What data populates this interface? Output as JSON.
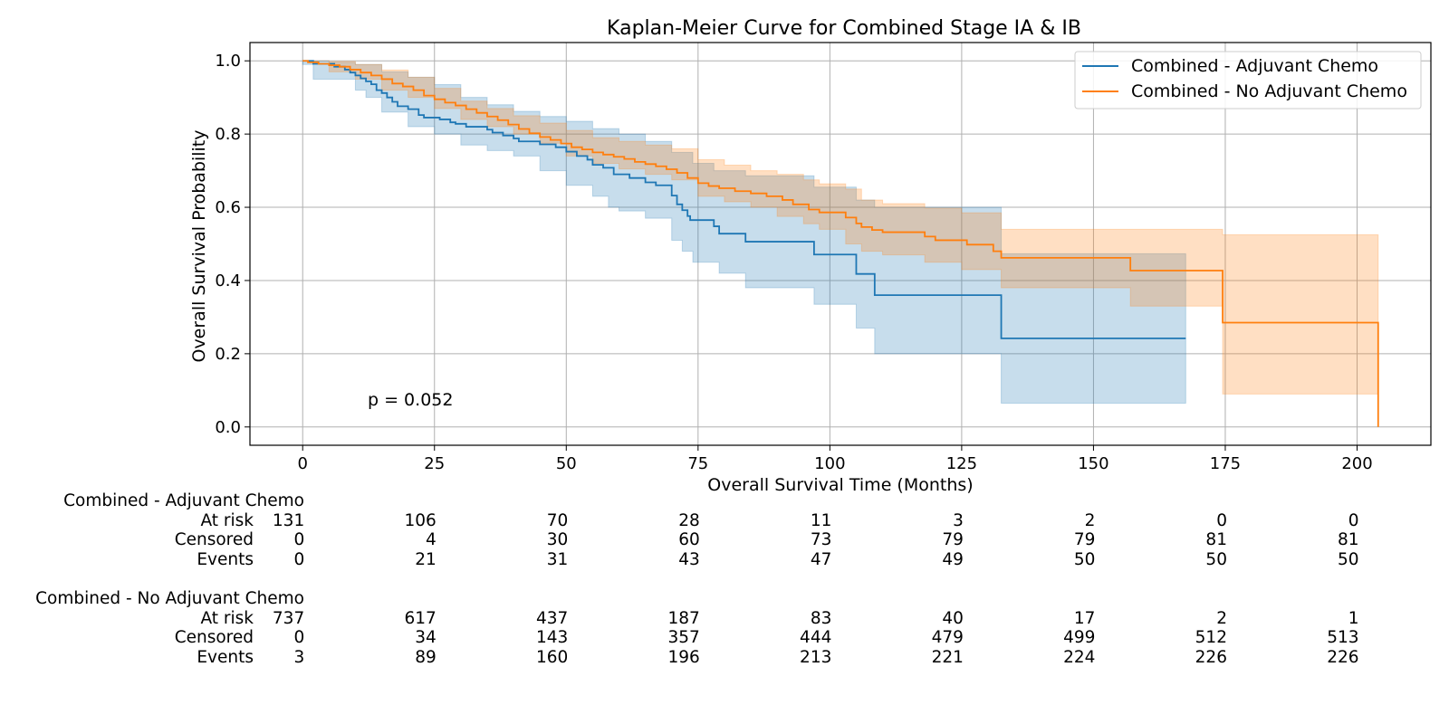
{
  "chart_data": {
    "type": "line",
    "title": "Kaplan-Meier Curve for Combined Stage IA & IB",
    "xlabel": "Overall Survival Time (Months)",
    "ylabel": "Overall Survival Probability",
    "xlim": [
      -10,
      214
    ],
    "ylim": [
      -0.05,
      1.05
    ],
    "x_ticks": [
      0,
      25,
      50,
      75,
      100,
      125,
      150,
      175,
      200
    ],
    "y_ticks": [
      0.0,
      0.2,
      0.4,
      0.6,
      0.8,
      1.0
    ],
    "x_tick_labels": [
      "0",
      "25",
      "50",
      "75",
      "100",
      "125",
      "150",
      "175",
      "200"
    ],
    "y_tick_labels": [
      "0.0",
      "0.2",
      "0.4",
      "0.6",
      "0.8",
      "1.0"
    ],
    "grid": true,
    "legend_position": "top-right",
    "annotation": "p = 0.052",
    "series": [
      {
        "name": "Combined - Adjuvant Chemo",
        "color": "#1f77b4",
        "step": [
          [
            0,
            1.0
          ],
          [
            2,
            0.992
          ],
          [
            6,
            0.984
          ],
          [
            8,
            0.976
          ],
          [
            9,
            0.968
          ],
          [
            10,
            0.96
          ],
          [
            11,
            0.952
          ],
          [
            12,
            0.944
          ],
          [
            13,
            0.936
          ],
          [
            14,
            0.92
          ],
          [
            15,
            0.912
          ],
          [
            16,
            0.9
          ],
          [
            17,
            0.888
          ],
          [
            18,
            0.876
          ],
          [
            20,
            0.868
          ],
          [
            22,
            0.852
          ],
          [
            23,
            0.845
          ],
          [
            26,
            0.84
          ],
          [
            28,
            0.832
          ],
          [
            29,
            0.828
          ],
          [
            31,
            0.82
          ],
          [
            35,
            0.812
          ],
          [
            36,
            0.804
          ],
          [
            38,
            0.796
          ],
          [
            40,
            0.788
          ],
          [
            41,
            0.78
          ],
          [
            45,
            0.772
          ],
          [
            48,
            0.764
          ],
          [
            50,
            0.752
          ],
          [
            52,
            0.74
          ],
          [
            54,
            0.73
          ],
          [
            55,
            0.716
          ],
          [
            57,
            0.708
          ],
          [
            59,
            0.69
          ],
          [
            62,
            0.68
          ],
          [
            65,
            0.668
          ],
          [
            67,
            0.66
          ],
          [
            70,
            0.632
          ],
          [
            71,
            0.608
          ],
          [
            72,
            0.592
          ],
          [
            73,
            0.576
          ],
          [
            73.5,
            0.565
          ],
          [
            78,
            0.548
          ],
          [
            79,
            0.528
          ],
          [
            84,
            0.506
          ],
          [
            97,
            0.471
          ],
          [
            105,
            0.418
          ],
          [
            108.5,
            0.36
          ],
          [
            132.5,
            0.242
          ],
          [
            167.5,
            0.242
          ]
        ],
        "ci_upper": [
          [
            0,
            1.0
          ],
          [
            5,
            0.996
          ],
          [
            10,
            0.99
          ],
          [
            15,
            0.97
          ],
          [
            20,
            0.955
          ],
          [
            25,
            0.935
          ],
          [
            30,
            0.9
          ],
          [
            35,
            0.88
          ],
          [
            40,
            0.862
          ],
          [
            45,
            0.848
          ],
          [
            50,
            0.835
          ],
          [
            55,
            0.815
          ],
          [
            60,
            0.8
          ],
          [
            65,
            0.78
          ],
          [
            70,
            0.75
          ],
          [
            74,
            0.72
          ],
          [
            78,
            0.7
          ],
          [
            84,
            0.686
          ],
          [
            97,
            0.655
          ],
          [
            105,
            0.62
          ],
          [
            108.5,
            0.6
          ],
          [
            132.5,
            0.473
          ],
          [
            167.5,
            0.473
          ]
        ],
        "ci_lower": [
          [
            0,
            0.99
          ],
          [
            2,
            0.95
          ],
          [
            5,
            0.95
          ],
          [
            10,
            0.92
          ],
          [
            12,
            0.9
          ],
          [
            15,
            0.86
          ],
          [
            20,
            0.82
          ],
          [
            25,
            0.8
          ],
          [
            30,
            0.77
          ],
          [
            35,
            0.755
          ],
          [
            40,
            0.74
          ],
          [
            45,
            0.7
          ],
          [
            50,
            0.66
          ],
          [
            55,
            0.63
          ],
          [
            58,
            0.6
          ],
          [
            60,
            0.59
          ],
          [
            65,
            0.57
          ],
          [
            70,
            0.51
          ],
          [
            72,
            0.48
          ],
          [
            74,
            0.45
          ],
          [
            79,
            0.42
          ],
          [
            84,
            0.38
          ],
          [
            97,
            0.335
          ],
          [
            105,
            0.27
          ],
          [
            108.5,
            0.2
          ],
          [
            132.5,
            0.065
          ],
          [
            167.5,
            0.065
          ]
        ]
      },
      {
        "name": "Combined - No Adjuvant Chemo",
        "color": "#ff7f0e",
        "step": [
          [
            0,
            1.0
          ],
          [
            1,
            0.996
          ],
          [
            3,
            0.992
          ],
          [
            5,
            0.988
          ],
          [
            7,
            0.984
          ],
          [
            9,
            0.976
          ],
          [
            11,
            0.968
          ],
          [
            13,
            0.96
          ],
          [
            15,
            0.95
          ],
          [
            17,
            0.938
          ],
          [
            19,
            0.93
          ],
          [
            21,
            0.92
          ],
          [
            23,
            0.905
          ],
          [
            25,
            0.895
          ],
          [
            27,
            0.886
          ],
          [
            29,
            0.878
          ],
          [
            31,
            0.868
          ],
          [
            33,
            0.858
          ],
          [
            35,
            0.848
          ],
          [
            37,
            0.838
          ],
          [
            39,
            0.826
          ],
          [
            41,
            0.814
          ],
          [
            43,
            0.802
          ],
          [
            45,
            0.792
          ],
          [
            47,
            0.784
          ],
          [
            49,
            0.774
          ],
          [
            51,
            0.764
          ],
          [
            53,
            0.758
          ],
          [
            55,
            0.75
          ],
          [
            57,
            0.744
          ],
          [
            59,
            0.738
          ],
          [
            61,
            0.732
          ],
          [
            63,
            0.724
          ],
          [
            65,
            0.718
          ],
          [
            67,
            0.712
          ],
          [
            69,
            0.704
          ],
          [
            71,
            0.694
          ],
          [
            73,
            0.68
          ],
          [
            75,
            0.666
          ],
          [
            77,
            0.658
          ],
          [
            79,
            0.652
          ],
          [
            82,
            0.644
          ],
          [
            85,
            0.638
          ],
          [
            88,
            0.63
          ],
          [
            91,
            0.62
          ],
          [
            93,
            0.608
          ],
          [
            96,
            0.594
          ],
          [
            98,
            0.586
          ],
          [
            103,
            0.572
          ],
          [
            105,
            0.556
          ],
          [
            106,
            0.546
          ],
          [
            108,
            0.538
          ],
          [
            110,
            0.532
          ],
          [
            118,
            0.52
          ],
          [
            120,
            0.51
          ],
          [
            126,
            0.498
          ],
          [
            131,
            0.48
          ],
          [
            132.5,
            0.462
          ],
          [
            157,
            0.427
          ],
          [
            174.5,
            0.285
          ],
          [
            204,
            0.0
          ]
        ],
        "ci_upper": [
          [
            0,
            1.0
          ],
          [
            5,
            0.998
          ],
          [
            10,
            0.99
          ],
          [
            15,
            0.975
          ],
          [
            20,
            0.955
          ],
          [
            25,
            0.925
          ],
          [
            30,
            0.89
          ],
          [
            35,
            0.87
          ],
          [
            40,
            0.85
          ],
          [
            45,
            0.83
          ],
          [
            50,
            0.81
          ],
          [
            55,
            0.79
          ],
          [
            60,
            0.78
          ],
          [
            65,
            0.77
          ],
          [
            70,
            0.76
          ],
          [
            75,
            0.73
          ],
          [
            80,
            0.715
          ],
          [
            85,
            0.7
          ],
          [
            90,
            0.69
          ],
          [
            95,
            0.675
          ],
          [
            98,
            0.664
          ],
          [
            103,
            0.65
          ],
          [
            106,
            0.62
          ],
          [
            110,
            0.61
          ],
          [
            118,
            0.598
          ],
          [
            125,
            0.585
          ],
          [
            132.5,
            0.54
          ],
          [
            157,
            0.54
          ],
          [
            174.5,
            0.525
          ],
          [
            204,
            0.525
          ]
        ],
        "ci_lower": [
          [
            0,
            1.0
          ],
          [
            5,
            0.97
          ],
          [
            10,
            0.95
          ],
          [
            15,
            0.92
          ],
          [
            20,
            0.9
          ],
          [
            25,
            0.87
          ],
          [
            30,
            0.84
          ],
          [
            35,
            0.82
          ],
          [
            40,
            0.8
          ],
          [
            45,
            0.775
          ],
          [
            50,
            0.74
          ],
          [
            55,
            0.72
          ],
          [
            60,
            0.705
          ],
          [
            65,
            0.69
          ],
          [
            70,
            0.675
          ],
          [
            75,
            0.63
          ],
          [
            80,
            0.615
          ],
          [
            85,
            0.6
          ],
          [
            90,
            0.575
          ],
          [
            95,
            0.555
          ],
          [
            98,
            0.54
          ],
          [
            103,
            0.5
          ],
          [
            106,
            0.48
          ],
          [
            110,
            0.47
          ],
          [
            118,
            0.45
          ],
          [
            125,
            0.43
          ],
          [
            132.5,
            0.38
          ],
          [
            157,
            0.33
          ],
          [
            174.5,
            0.09
          ],
          [
            204,
            0.09
          ]
        ]
      }
    ]
  },
  "risk_table": {
    "groups": [
      {
        "name": "Combined - Adjuvant Chemo",
        "rows": [
          {
            "label": "At risk",
            "values": [
              "131",
              "106",
              "70",
              "28",
              "11",
              "3",
              "2",
              "0",
              "0"
            ]
          },
          {
            "label": "Censored",
            "values": [
              "0",
              "4",
              "30",
              "60",
              "73",
              "79",
              "79",
              "81",
              "81"
            ]
          },
          {
            "label": "Events",
            "values": [
              "0",
              "21",
              "31",
              "43",
              "47",
              "49",
              "50",
              "50",
              "50"
            ]
          }
        ]
      },
      {
        "name": "Combined - No Adjuvant Chemo",
        "rows": [
          {
            "label": "At risk",
            "values": [
              "737",
              "617",
              "437",
              "187",
              "83",
              "40",
              "17",
              "2",
              "1"
            ]
          },
          {
            "label": "Censored",
            "values": [
              "0",
              "34",
              "143",
              "357",
              "444",
              "479",
              "499",
              "512",
              "513"
            ]
          },
          {
            "label": "Events",
            "values": [
              "3",
              "89",
              "160",
              "196",
              "213",
              "221",
              "224",
              "226",
              "226"
            ]
          }
        ]
      }
    ]
  }
}
